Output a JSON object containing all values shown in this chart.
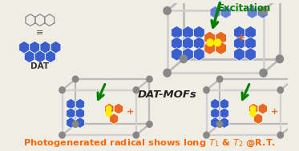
{
  "bg_color": "#f0ede5",
  "title_text": "Photogenerated radical shows long $T_1$ & $T_2$ @R.T.",
  "title_color": "#ff6600",
  "title_fontsize": 8.2,
  "excitation_color": "#008000",
  "excitation_text": "Excitation",
  "dat_mofs_text": "DAT-MOFs",
  "dat_mofs_color": "#222222",
  "dat_label": "DAT",
  "blue_hex_color": "#3a5ecc",
  "orange_hex_color": "#e86820",
  "yellow_dot_color": "#ffee00",
  "node_color": "#888888",
  "frame_front_color": "#d0d0d0",
  "frame_back_color": "#bbbbbb",
  "frame_lw": 1.8
}
